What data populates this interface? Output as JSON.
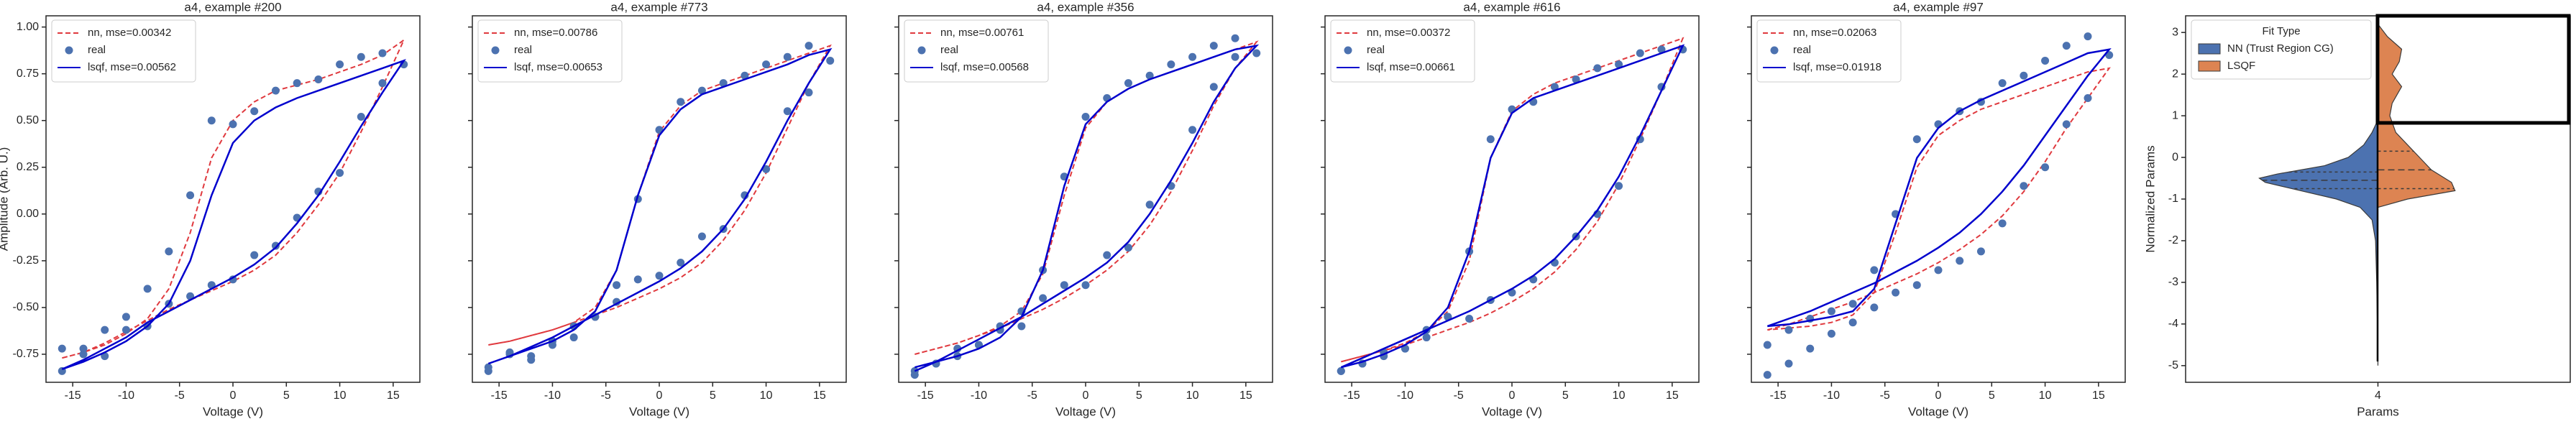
{
  "chart_data": [
    {
      "type": "line",
      "title": "a4, example #200",
      "xlabel": "Voltage (V)",
      "ylabel": "Amplitude (Arb. U.)",
      "show_ytick_labels": true,
      "xlim": [
        -17.5,
        17.5
      ],
      "xticks": [
        -15,
        -10,
        -5,
        0,
        5,
        10,
        15
      ],
      "ylim": [
        -0.9,
        1.06
      ],
      "yticks": [
        -0.75,
        {
          "value": -0.5,
          "label": "-0.50"
        },
        -0.25,
        {
          "value": 0,
          "label": "0.00"
        },
        0.25,
        {
          "value": 0.5,
          "label": "0.50"
        },
        0.75,
        {
          "value": 1,
          "label": "1.00"
        }
      ],
      "x": [
        -16,
        -14,
        -12,
        -10,
        -8,
        -6,
        -4,
        -2,
        0,
        2,
        4,
        6,
        8,
        10,
        12,
        14,
        16,
        14,
        12,
        10,
        8,
        6,
        4,
        2,
        0,
        -2,
        -4,
        -6,
        -8,
        -10,
        -12,
        -14,
        -16
      ],
      "series": [
        {
          "name": "nn, mse=0.00342",
          "color": "#e0393e",
          "style": "dashed",
          "values": [
            -0.77,
            -0.74,
            -0.69,
            -0.63,
            -0.57,
            -0.51,
            -0.46,
            -0.41,
            -0.36,
            -0.3,
            -0.22,
            -0.1,
            0.05,
            0.22,
            0.44,
            0.68,
            0.93,
            0.85,
            0.8,
            0.76,
            0.72,
            0.69,
            0.66,
            0.6,
            0.5,
            0.3,
            -0.1,
            -0.4,
            -0.56,
            -0.64,
            -0.7,
            -0.74,
            -0.77
          ]
        },
        {
          "name": "real",
          "color": "#4c72b0",
          "style": "points",
          "values": [
            -0.84,
            -0.75,
            -0.76,
            -0.62,
            -0.6,
            -0.48,
            -0.44,
            -0.38,
            -0.35,
            -0.22,
            -0.17,
            -0.02,
            0.12,
            0.22,
            0.52,
            0.7,
            0.8,
            0.86,
            0.84,
            0.8,
            0.72,
            0.7,
            0.66,
            0.55,
            0.48,
            0.5,
            0.1,
            -0.2,
            -0.4,
            -0.55,
            -0.62,
            -0.72,
            -0.72
          ]
        },
        {
          "name": "lsqf, mse=0.00562",
          "color": "#0000cd",
          "style": "solid",
          "values": [
            -0.83,
            -0.78,
            -0.72,
            -0.66,
            -0.58,
            -0.52,
            -0.46,
            -0.4,
            -0.34,
            -0.27,
            -0.18,
            -0.05,
            0.1,
            0.28,
            0.47,
            0.65,
            0.82,
            0.78,
            0.74,
            0.7,
            0.66,
            0.62,
            0.57,
            0.5,
            0.38,
            0.1,
            -0.25,
            -0.48,
            -0.6,
            -0.68,
            -0.74,
            -0.79,
            -0.83
          ]
        }
      ]
    },
    {
      "type": "line",
      "title": "a4, example #773",
      "xlabel": "Voltage (V)",
      "show_ytick_labels": false,
      "xlim": [
        -17.5,
        17.5
      ],
      "xticks": [
        -15,
        -10,
        -5,
        0,
        5,
        10,
        15
      ],
      "ylim": [
        -0.9,
        1.06
      ],
      "yticks": [
        -0.75,
        -0.5,
        -0.25,
        0,
        0.25,
        0.5,
        0.75,
        1
      ],
      "x": [
        -16,
        -14,
        -12,
        -10,
        -8,
        -6,
        -4,
        -2,
        0,
        2,
        4,
        6,
        8,
        10,
        12,
        14,
        16,
        14,
        12,
        10,
        8,
        6,
        4,
        2,
        0,
        -2,
        -4,
        -6,
        -8,
        -10,
        -12,
        -14,
        -16
      ],
      "series": [
        {
          "name": "nn, mse=0.00786",
          "color": "#e0393e",
          "style": "dashed",
          "values": [
            -0.7,
            -0.68,
            -0.65,
            -0.62,
            -0.58,
            -0.54,
            -0.5,
            -0.45,
            -0.4,
            -0.34,
            -0.26,
            -0.14,
            0.02,
            0.22,
            0.46,
            0.7,
            0.9,
            0.86,
            0.82,
            0.78,
            0.74,
            0.7,
            0.66,
            0.58,
            0.44,
            0.1,
            -0.3,
            -0.5,
            -0.58,
            -0.62,
            -0.65,
            -0.68,
            -0.7
          ]
        },
        {
          "name": "real",
          "color": "#4c72b0",
          "style": "points",
          "values": [
            -0.84,
            -0.75,
            -0.78,
            -0.7,
            -0.66,
            -0.55,
            -0.47,
            -0.35,
            -0.33,
            -0.26,
            -0.12,
            -0.08,
            0.1,
            0.24,
            0.55,
            0.65,
            0.82,
            0.9,
            0.84,
            0.8,
            0.74,
            0.7,
            0.66,
            0.6,
            0.45,
            0.08,
            -0.38,
            -0.55,
            -0.6,
            -0.68,
            -0.76,
            -0.74,
            -0.82
          ]
        },
        {
          "name": "lsqf, mse=0.00653",
          "color": "#0000cd",
          "style": "solid",
          "values": [
            -0.8,
            -0.76,
            -0.71,
            -0.66,
            -0.6,
            -0.54,
            -0.48,
            -0.42,
            -0.36,
            -0.29,
            -0.2,
            -0.08,
            0.08,
            0.28,
            0.5,
            0.7,
            0.88,
            0.85,
            0.8,
            0.76,
            0.72,
            0.68,
            0.64,
            0.56,
            0.42,
            0.1,
            -0.3,
            -0.52,
            -0.62,
            -0.68,
            -0.72,
            -0.76,
            -0.8
          ]
        }
      ]
    },
    {
      "type": "line",
      "title": "a4, example #356",
      "xlabel": "Voltage (V)",
      "show_ytick_labels": false,
      "xlim": [
        -17.5,
        17.5
      ],
      "xticks": [
        -15,
        -10,
        -5,
        0,
        5,
        10,
        15
      ],
      "ylim": [
        -0.9,
        1.06
      ],
      "yticks": [
        -0.75,
        -0.5,
        -0.25,
        0,
        0.25,
        0.5,
        0.75,
        1
      ],
      "x": [
        -16,
        -14,
        -12,
        -10,
        -8,
        -6,
        -4,
        -2,
        0,
        2,
        4,
        6,
        8,
        10,
        12,
        14,
        16,
        14,
        12,
        10,
        8,
        6,
        4,
        2,
        0,
        -2,
        -4,
        -6,
        -8,
        -10,
        -12,
        -14,
        -16
      ],
      "series": [
        {
          "name": "nn, mse=0.00761",
          "color": "#e0393e",
          "style": "dashed",
          "values": [
            -0.75,
            -0.72,
            -0.69,
            -0.65,
            -0.61,
            -0.56,
            -0.51,
            -0.45,
            -0.38,
            -0.3,
            -0.2,
            -0.06,
            0.12,
            0.34,
            0.58,
            0.78,
            0.92,
            0.88,
            0.84,
            0.8,
            0.76,
            0.72,
            0.67,
            0.6,
            0.46,
            0.1,
            -0.32,
            -0.52,
            -0.6,
            -0.65,
            -0.69,
            -0.72,
            -0.75
          ]
        },
        {
          "name": "real",
          "color": "#4c72b0",
          "style": "points",
          "values": [
            -0.86,
            -0.8,
            -0.72,
            -0.7,
            -0.6,
            -0.52,
            -0.45,
            -0.38,
            -0.38,
            -0.22,
            -0.18,
            0.05,
            0.15,
            0.45,
            0.68,
            0.84,
            0.86,
            0.94,
            0.9,
            0.84,
            0.8,
            0.74,
            0.7,
            0.62,
            0.52,
            0.2,
            -0.3,
            -0.6,
            -0.62,
            -0.7,
            -0.76,
            -0.8,
            -0.84
          ]
        },
        {
          "name": "lsqf, mse=0.00568",
          "color": "#0000cd",
          "style": "solid",
          "values": [
            -0.84,
            -0.79,
            -0.73,
            -0.67,
            -0.61,
            -0.55,
            -0.48,
            -0.41,
            -0.34,
            -0.26,
            -0.15,
            0,
            0.18,
            0.38,
            0.6,
            0.78,
            0.9,
            0.88,
            0.84,
            0.8,
            0.76,
            0.72,
            0.67,
            0.6,
            0.48,
            0.15,
            -0.3,
            -0.55,
            -0.66,
            -0.72,
            -0.76,
            -0.79,
            -0.82
          ]
        }
      ]
    },
    {
      "type": "line",
      "title": "a4, example #616",
      "xlabel": "Voltage (V)",
      "show_ytick_labels": false,
      "xlim": [
        -17.5,
        17.5
      ],
      "xticks": [
        -15,
        -10,
        -5,
        0,
        5,
        10,
        15
      ],
      "ylim": [
        -0.9,
        1.06
      ],
      "yticks": [
        -0.75,
        -0.5,
        -0.25,
        0,
        0.25,
        0.5,
        0.75,
        1
      ],
      "x": [
        -16,
        -14,
        -12,
        -10,
        -8,
        -6,
        -4,
        -2,
        0,
        2,
        4,
        6,
        8,
        10,
        12,
        14,
        16,
        14,
        12,
        10,
        8,
        6,
        4,
        2,
        0,
        -2,
        -4,
        -6,
        -8,
        -10,
        -12,
        -14,
        -16
      ],
      "series": [
        {
          "name": "nn, mse=0.00372",
          "color": "#e0393e",
          "style": "dashed",
          "values": [
            -0.79,
            -0.76,
            -0.73,
            -0.7,
            -0.66,
            -0.62,
            -0.58,
            -0.53,
            -0.47,
            -0.4,
            -0.31,
            -0.19,
            -0.04,
            0.16,
            0.4,
            0.66,
            0.94,
            0.9,
            0.86,
            0.82,
            0.78,
            0.74,
            0.7,
            0.64,
            0.55,
            0.3,
            -0.25,
            -0.52,
            -0.63,
            -0.69,
            -0.73,
            -0.76,
            -0.79
          ]
        },
        {
          "name": "real",
          "color": "#4c72b0",
          "style": "points",
          "values": [
            -0.84,
            -0.8,
            -0.74,
            -0.72,
            -0.62,
            -0.55,
            -0.56,
            -0.46,
            -0.42,
            -0.35,
            -0.26,
            -0.12,
            0,
            0.15,
            0.4,
            0.68,
            0.88,
            0.88,
            0.86,
            0.8,
            0.78,
            0.72,
            0.68,
            0.6,
            0.56,
            0.4,
            -0.2,
            -0.55,
            -0.66,
            -0.72,
            -0.76,
            -0.8,
            -0.84
          ]
        },
        {
          "name": "lsqf, mse=0.00661",
          "color": "#0000cd",
          "style": "solid",
          "values": [
            -0.82,
            -0.77,
            -0.72,
            -0.67,
            -0.62,
            -0.57,
            -0.52,
            -0.46,
            -0.4,
            -0.33,
            -0.24,
            -0.12,
            0.02,
            0.2,
            0.42,
            0.66,
            0.9,
            0.86,
            0.82,
            0.78,
            0.74,
            0.7,
            0.66,
            0.62,
            0.54,
            0.3,
            -0.2,
            -0.5,
            -0.63,
            -0.7,
            -0.75,
            -0.79,
            -0.82
          ]
        }
      ]
    },
    {
      "type": "line",
      "title": "a4, example #97",
      "xlabel": "Voltage (V)",
      "show_ytick_labels": false,
      "xlim": [
        -17.5,
        17.5
      ],
      "xticks": [
        -15,
        -10,
        -5,
        0,
        5,
        10,
        15
      ],
      "ylim": [
        -0.9,
        1.06
      ],
      "yticks": [
        -0.75,
        -0.5,
        -0.25,
        0,
        0.25,
        0.5,
        0.75,
        1
      ],
      "x": [
        -16,
        -14,
        -12,
        -10,
        -8,
        -6,
        -4,
        -2,
        0,
        2,
        4,
        6,
        8,
        10,
        12,
        14,
        16,
        14,
        12,
        10,
        8,
        6,
        4,
        2,
        0,
        -2,
        -4,
        -6,
        -8,
        -10,
        -12,
        -14,
        -16
      ],
      "series": [
        {
          "name": "nn, mse=0.02063",
          "color": "#e0393e",
          "style": "dashed",
          "values": [
            -0.62,
            -0.59,
            -0.55,
            -0.51,
            -0.47,
            -0.42,
            -0.37,
            -0.32,
            -0.26,
            -0.19,
            -0.11,
            -0.01,
            0.12,
            0.28,
            0.46,
            0.62,
            0.78,
            0.76,
            0.72,
            0.68,
            0.64,
            0.6,
            0.56,
            0.5,
            0.42,
            0.25,
            -0.1,
            -0.42,
            -0.54,
            -0.58,
            -0.6,
            -0.61,
            -0.62
          ]
        },
        {
          "name": "real",
          "color": "#4c72b0",
          "style": "points",
          "values": [
            -0.86,
            -0.8,
            -0.72,
            -0.64,
            -0.58,
            -0.5,
            -0.42,
            -0.38,
            -0.3,
            -0.25,
            -0.2,
            -0.05,
            0.15,
            0.25,
            0.48,
            0.62,
            0.85,
            0.95,
            0.9,
            0.82,
            0.74,
            0.7,
            0.6,
            0.55,
            0.48,
            0.4,
            0,
            -0.3,
            -0.48,
            -0.52,
            -0.56,
            -0.62,
            -0.7
          ]
        },
        {
          "name": "lsqf, mse=0.01918",
          "color": "#0000cd",
          "style": "solid",
          "values": [
            -0.6,
            -0.56,
            -0.52,
            -0.47,
            -0.42,
            -0.37,
            -0.31,
            -0.25,
            -0.18,
            -0.1,
            0,
            0.12,
            0.26,
            0.42,
            0.58,
            0.74,
            0.88,
            0.86,
            0.81,
            0.76,
            0.71,
            0.66,
            0.61,
            0.55,
            0.46,
            0.3,
            -0.05,
            -0.4,
            -0.52,
            -0.55,
            -0.57,
            -0.59,
            -0.6
          ]
        }
      ]
    },
    {
      "type": "violin",
      "xlabel": "Params",
      "ylabel": "Normalized Params",
      "categories": [
        "4"
      ],
      "legend_title": "Fit Type",
      "ylim": [
        -5.4,
        3.4
      ],
      "yticks": [
        -5,
        -4,
        -3,
        -2,
        -1,
        0,
        1,
        2,
        3
      ],
      "series": [
        {
          "name": "NN (Trust Region CG)",
          "color": "#4c72b0",
          "side": "left",
          "y": [
            -5,
            -4,
            -3,
            -2,
            -1.5,
            -1.2,
            -1,
            -0.8,
            -0.6,
            -0.5,
            -0.4,
            -0.2,
            0,
            0.3,
            0.6,
            0.9
          ],
          "density": [
            0,
            0.005,
            0.01,
            0.02,
            0.05,
            0.15,
            0.35,
            0.65,
            0.95,
            1,
            0.85,
            0.45,
            0.25,
            0.12,
            0.05,
            0
          ],
          "quartiles": [
            -0.75,
            -0.55,
            -0.35
          ]
        },
        {
          "name": "LSQF",
          "color": "#dd8452",
          "side": "right",
          "y": [
            -1.2,
            -1,
            -0.8,
            -0.6,
            -0.3,
            0,
            0.3,
            0.6,
            1,
            1.3,
            1.7,
            2,
            2.3,
            2.6,
            2.9,
            3.2
          ],
          "density": [
            0,
            0.25,
            0.65,
            0.62,
            0.45,
            0.35,
            0.25,
            0.15,
            0.1,
            0.12,
            0.2,
            0.12,
            0.18,
            0.2,
            0.08,
            0
          ],
          "quartiles": [
            -0.75,
            -0.3,
            0.15
          ]
        }
      ]
    }
  ]
}
